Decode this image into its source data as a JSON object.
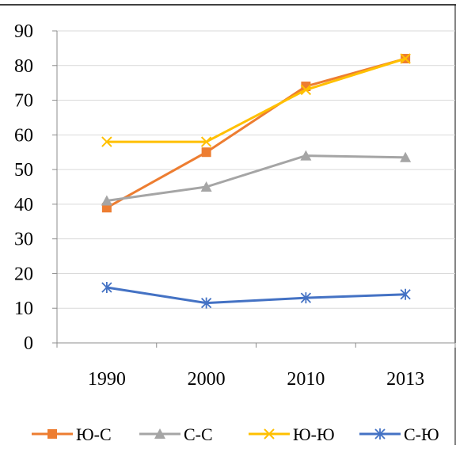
{
  "chart_data": {
    "type": "line",
    "categories": [
      "1990",
      "2000",
      "2010",
      "2013"
    ],
    "ylim": [
      0,
      90
    ],
    "yticks": [
      0,
      10,
      20,
      30,
      40,
      50,
      60,
      70,
      80,
      90
    ],
    "grid": "horizontal",
    "legend_position": "bottom",
    "series": [
      {
        "name": "Ю-С",
        "values": [
          39,
          55,
          74,
          82
        ],
        "color": "#ED7D31",
        "marker": "square"
      },
      {
        "name": "С-С",
        "values": [
          41,
          45,
          54,
          53.5
        ],
        "color": "#A5A5A5",
        "marker": "triangle"
      },
      {
        "name": "Ю-Ю",
        "values": [
          58,
          58,
          73,
          82
        ],
        "color": "#FFC000",
        "marker": "x"
      },
      {
        "name": "С-Ю",
        "values": [
          16,
          11.5,
          13,
          14
        ],
        "color": "#4472C4",
        "marker": "star"
      }
    ]
  }
}
